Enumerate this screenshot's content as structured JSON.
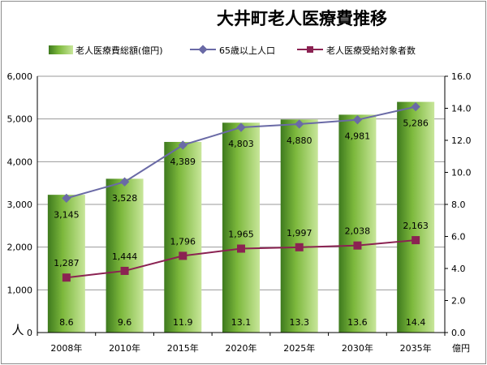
{
  "chart_data": {
    "type": "bar",
    "title": "大井町老人医療費推移",
    "categories": [
      "2008年",
      "2010年",
      "2015年",
      "2020年",
      "2025年",
      "2030年",
      "2035年"
    ],
    "series": [
      {
        "name": "老人医療費総額(億円)",
        "kind": "bar",
        "axis": "right",
        "values": [
          8.6,
          9.6,
          11.9,
          13.1,
          13.3,
          13.6,
          14.4
        ],
        "labels": [
          "8.6",
          "9.6",
          "11.9",
          "13.1",
          "13.3",
          "13.6",
          "14.4"
        ]
      },
      {
        "name": "65歳以上人口",
        "kind": "line",
        "axis": "left",
        "color": "#6a6aa6",
        "values": [
          3145,
          3528,
          4389,
          4803,
          4880,
          4981,
          5286
        ],
        "labels": [
          "3,145",
          "3,528",
          "4,389",
          "4,803",
          "4,880",
          "4,981",
          "5,286"
        ]
      },
      {
        "name": "老人医療受給対象者数",
        "kind": "line",
        "axis": "left",
        "color": "#8b2252",
        "values": [
          1287,
          1444,
          1796,
          1965,
          1997,
          2038,
          2163
        ],
        "labels": [
          "1,287",
          "1,444",
          "1,796",
          "1,965",
          "1,997",
          "2,038",
          "2,163"
        ]
      }
    ],
    "y_left": {
      "label": "人",
      "min": 0,
      "max": 6000,
      "ticks": [
        "0",
        "1,000",
        "2,000",
        "3,000",
        "4,000",
        "5,000",
        "6,000"
      ]
    },
    "y_right": {
      "label": "億円",
      "min": 0,
      "max": 16,
      "ticks": [
        "0.0",
        "2.0",
        "4.0",
        "6.0",
        "8.0",
        "10.0",
        "12.0",
        "14.0",
        "16.0"
      ]
    },
    "grid": true,
    "legend_position": "top"
  }
}
